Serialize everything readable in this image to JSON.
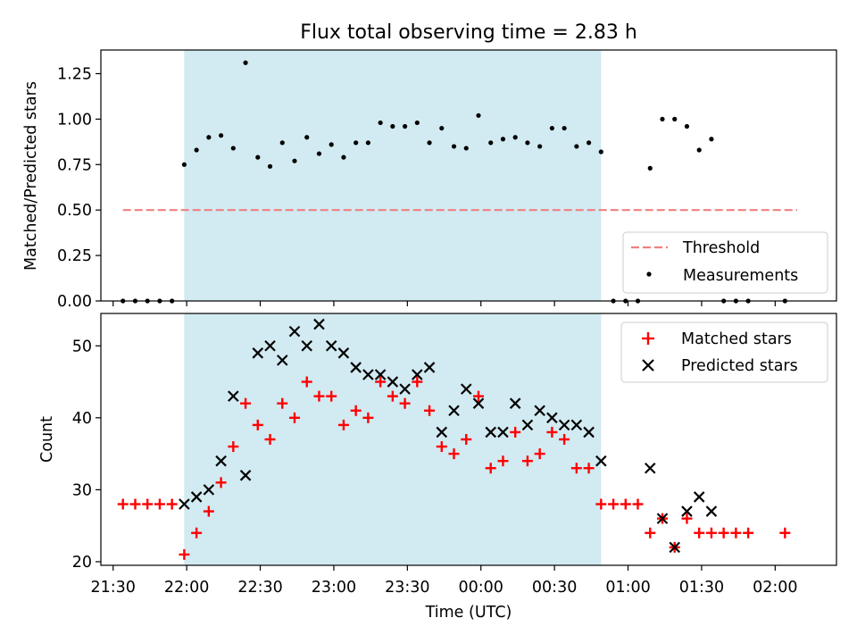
{
  "chart_data": [
    {
      "type": "scatter",
      "title": "Flux total observing time = 2.83 h",
      "ylabel": "Matched/Predicted stars",
      "xlabel": "",
      "xlim": [
        "21:25",
        "02:25"
      ],
      "ylim": [
        0,
        1.38
      ],
      "yticks": [
        0.0,
        0.25,
        0.5,
        0.75,
        1.0,
        1.25
      ],
      "ytick_labels": [
        "0.00",
        "0.25",
        "0.50",
        "0.75",
        "1.00",
        "1.25"
      ],
      "shaded_span": [
        "21:59",
        "00:49"
      ],
      "shaded_color": "#add8e6",
      "threshold": {
        "name": "Threshold",
        "y": 0.5,
        "x_range": [
          "21:34",
          "02:09"
        ],
        "color": "#f08080",
        "style": "dashed"
      },
      "legend": [
        "Threshold",
        "Measurements"
      ],
      "legend_position": "lower right",
      "series": [
        {
          "name": "Measurements",
          "color": "#000000",
          "marker": "dot",
          "x": [
            "21:34",
            "21:39",
            "21:44",
            "21:49",
            "21:54",
            "21:59",
            "22:04",
            "22:09",
            "22:14",
            "22:19",
            "22:24",
            "22:29",
            "22:34",
            "22:39",
            "22:44",
            "22:49",
            "22:54",
            "22:59",
            "23:04",
            "23:09",
            "23:14",
            "23:19",
            "23:24",
            "23:29",
            "23:34",
            "23:39",
            "23:44",
            "23:49",
            "23:54",
            "23:59",
            "00:04",
            "00:09",
            "00:14",
            "00:19",
            "00:24",
            "00:29",
            "00:34",
            "00:39",
            "00:44",
            "00:49",
            "00:54",
            "00:59",
            "01:04",
            "01:09",
            "01:14",
            "01:19",
            "01:24",
            "01:29",
            "01:34",
            "01:39",
            "01:44",
            "01:49",
            "02:04"
          ],
          "y": [
            0,
            0,
            0,
            0,
            0,
            0.75,
            0.83,
            0.9,
            0.91,
            0.84,
            1.31,
            0.79,
            0.74,
            0.87,
            0.77,
            0.9,
            0.81,
            0.86,
            0.79,
            0.87,
            0.87,
            0.98,
            0.96,
            0.96,
            0.98,
            0.87,
            0.95,
            0.85,
            0.84,
            1.02,
            0.87,
            0.89,
            0.9,
            0.87,
            0.85,
            0.95,
            0.95,
            0.85,
            0.87,
            0.82,
            0,
            0,
            0,
            0.73,
            1.0,
            1.0,
            0.96,
            0.83,
            0.89,
            0,
            0,
            0,
            0
          ]
        }
      ]
    },
    {
      "type": "scatter",
      "title": "",
      "xlabel": "Time (UTC)",
      "ylabel": "Count",
      "xlim": [
        "21:25",
        "02:25"
      ],
      "ylim": [
        19.5,
        54.5
      ],
      "xticks": [
        "21:30",
        "22:00",
        "22:30",
        "23:00",
        "23:30",
        "00:00",
        "00:30",
        "01:00",
        "01:30",
        "02:00"
      ],
      "yticks": [
        20,
        30,
        40,
        50
      ],
      "ytick_labels": [
        "20",
        "30",
        "40",
        "50"
      ],
      "shaded_span": [
        "21:59",
        "00:49"
      ],
      "shaded_color": "#add8e6",
      "legend": [
        "Matched stars",
        "Predicted stars"
      ],
      "legend_position": "upper right",
      "series": [
        {
          "name": "Matched stars",
          "color": "#ff0000",
          "marker": "plus",
          "x": [
            "21:34",
            "21:39",
            "21:44",
            "21:49",
            "21:54",
            "21:59",
            "22:04",
            "22:09",
            "22:14",
            "22:19",
            "22:24",
            "22:29",
            "22:34",
            "22:39",
            "22:44",
            "22:49",
            "22:54",
            "22:59",
            "23:04",
            "23:09",
            "23:14",
            "23:19",
            "23:24",
            "23:29",
            "23:34",
            "23:39",
            "23:44",
            "23:49",
            "23:54",
            "23:59",
            "00:04",
            "00:09",
            "00:14",
            "00:19",
            "00:24",
            "00:29",
            "00:34",
            "00:39",
            "00:44",
            "00:49",
            "00:54",
            "00:59",
            "01:04",
            "01:09",
            "01:14",
            "01:19",
            "01:24",
            "01:29",
            "01:34",
            "01:39",
            "01:44",
            "01:49",
            "02:04"
          ],
          "y": [
            28,
            28,
            28,
            28,
            28,
            21,
            24,
            27,
            31,
            36,
            42,
            39,
            37,
            42,
            40,
            45,
            43,
            43,
            39,
            41,
            40,
            45,
            43,
            42,
            45,
            41,
            36,
            35,
            37,
            43,
            33,
            34,
            38,
            34,
            35,
            38,
            37,
            33,
            33,
            28,
            28,
            28,
            28,
            24,
            26,
            22,
            26,
            24,
            24,
            24,
            24,
            24,
            24
          ]
        },
        {
          "name": "Predicted stars",
          "color": "#000000",
          "marker": "x",
          "x": [
            "21:59",
            "22:04",
            "22:09",
            "22:14",
            "22:19",
            "22:24",
            "22:29",
            "22:34",
            "22:39",
            "22:44",
            "22:49",
            "22:54",
            "22:59",
            "23:04",
            "23:09",
            "23:14",
            "23:19",
            "23:24",
            "23:29",
            "23:34",
            "23:39",
            "23:44",
            "23:49",
            "23:54",
            "23:59",
            "00:04",
            "00:09",
            "00:14",
            "00:19",
            "00:24",
            "00:29",
            "00:34",
            "00:39",
            "00:44",
            "00:49",
            "01:09",
            "01:14",
            "01:19",
            "01:24",
            "01:29",
            "01:34"
          ],
          "y": [
            28,
            29,
            30,
            34,
            43,
            32,
            49,
            50,
            48,
            52,
            50,
            53,
            50,
            49,
            47,
            46,
            46,
            45,
            44,
            46,
            47,
            38,
            41,
            44,
            42,
            38,
            38,
            42,
            39,
            41,
            40,
            39,
            39,
            38,
            34,
            33,
            26,
            22,
            27,
            29,
            27
          ]
        }
      ]
    }
  ]
}
